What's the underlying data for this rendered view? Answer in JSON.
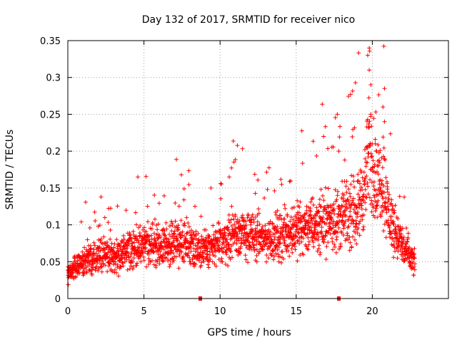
{
  "chart_data": {
    "type": "scatter",
    "title": "Day 132 of 2017, SRMTID for receiver nico",
    "xlabel": "GPS time / hours",
    "ylabel": "SRMTID / TECUs",
    "xlim": [
      0,
      25
    ],
    "ylim": [
      0,
      0.35
    ],
    "x_ticks": [
      "0",
      "5",
      "10",
      "15",
      "20"
    ],
    "x_tick_values": [
      0,
      5,
      10,
      15,
      20
    ],
    "y_ticks": [
      "0",
      "0.05",
      "0.1",
      "0.15",
      "0.2",
      "0.25",
      "0.3",
      "0.35"
    ],
    "y_tick_values": [
      0,
      0.05,
      0.1,
      0.15,
      0.2,
      0.25,
      0.3,
      0.35
    ],
    "grid": true,
    "marker": "+",
    "color": "#ff0000",
    "x_range_data": [
      0.0,
      22.8
    ],
    "trend": {
      "x": [
        0,
        1,
        2,
        3,
        4,
        5,
        6,
        7,
        8,
        9,
        10,
        11,
        12,
        13,
        14,
        15,
        16,
        17,
        18,
        18.5,
        19,
        19.5,
        19.8,
        20,
        20.3,
        20.7,
        21,
        21.5,
        22,
        22.5,
        22.8
      ],
      "y": [
        0.035,
        0.05,
        0.06,
        0.055,
        0.065,
        0.075,
        0.07,
        0.075,
        0.075,
        0.065,
        0.075,
        0.09,
        0.085,
        0.08,
        0.085,
        0.095,
        0.1,
        0.105,
        0.11,
        0.115,
        0.12,
        0.15,
        0.2,
        0.18,
        0.15,
        0.17,
        0.12,
        0.09,
        0.07,
        0.055,
        0.045
      ]
    },
    "peak_points": [
      [
        19.8,
        0.34
      ],
      [
        19.7,
        0.33
      ],
      [
        19.8,
        0.31
      ],
      [
        19.9,
        0.29
      ],
      [
        20.8,
        0.285
      ],
      [
        20.7,
        0.26
      ],
      [
        17.7,
        0.25
      ],
      [
        19.9,
        0.25
      ],
      [
        20.8,
        0.24
      ],
      [
        16.8,
        0.22
      ],
      [
        17.8,
        0.2
      ],
      [
        20.2,
        0.21
      ],
      [
        4.6,
        0.165
      ],
      [
        10.6,
        0.165
      ],
      [
        9.4,
        0.15
      ]
    ],
    "markers_on_axis": [
      8.7,
      17.8
    ]
  }
}
